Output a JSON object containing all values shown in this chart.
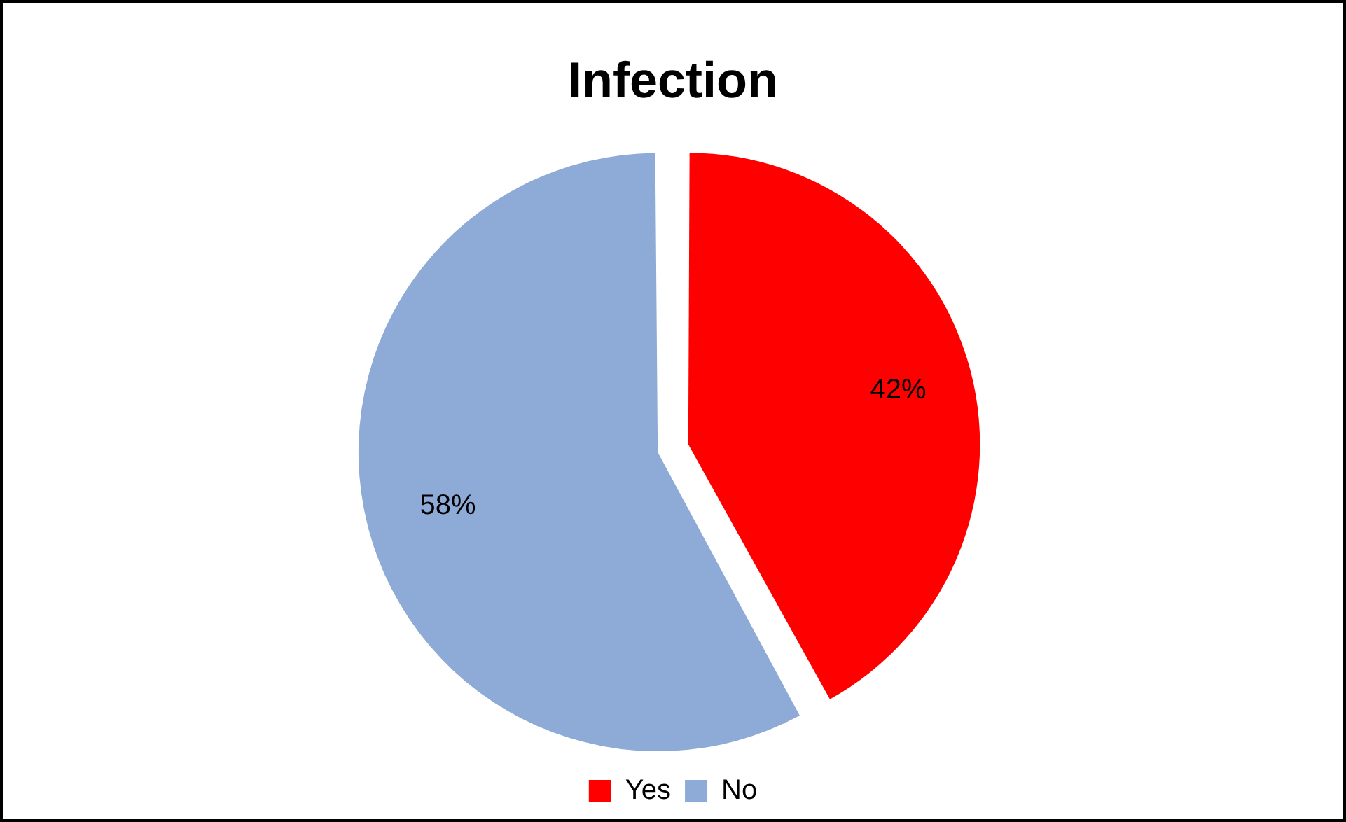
{
  "chart_data": {
    "type": "pie",
    "title": "Infection",
    "categories": [
      "Yes",
      "No"
    ],
    "values": [
      42,
      58
    ],
    "colors": [
      "#ff0000",
      "#8eaad6"
    ],
    "value_labels": [
      "42%",
      "58%"
    ],
    "legend": "bottom"
  }
}
